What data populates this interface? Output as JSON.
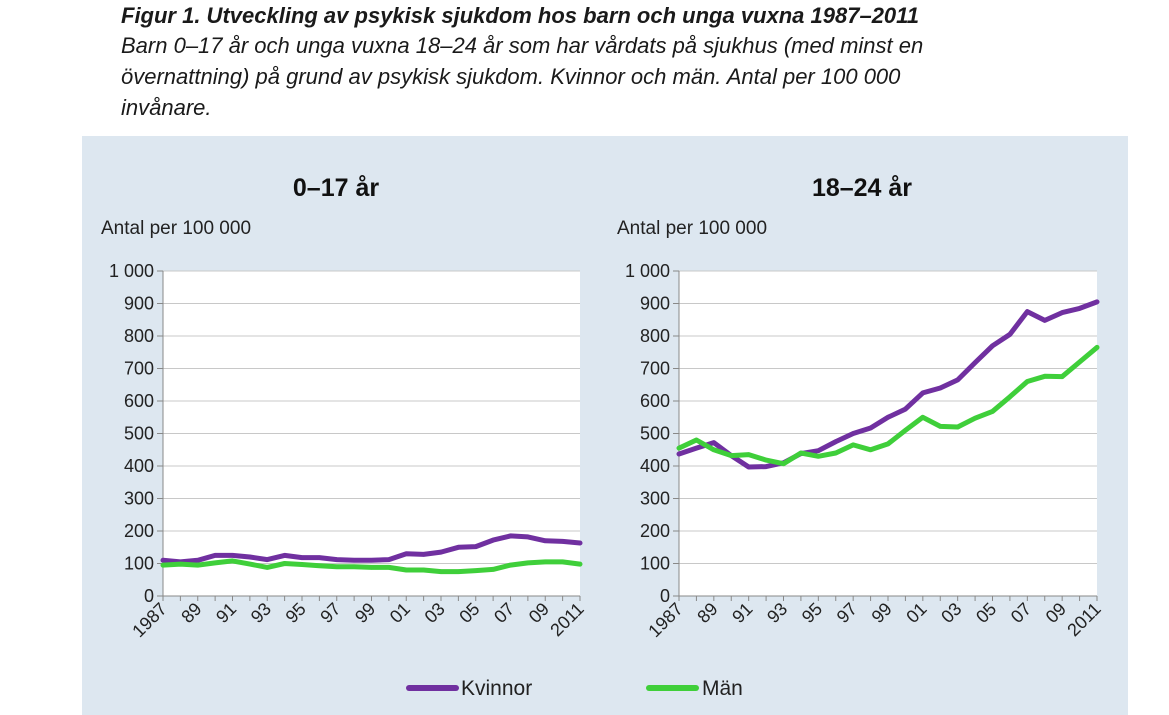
{
  "figure": {
    "title": "Figur 1. Utveckling av psykisk sjukdom hos barn och unga vuxna 1987–2011",
    "subtitle_lines": [
      "Barn 0–17 år och unga vuxna 18–24 år som har vårdats på sjukhus (med minst en",
      "övernattning) på grund av psykisk sjukdom. Kvinnor och män. Antal per 100 000",
      "invånare."
    ]
  },
  "colors": {
    "Kvinnor": "#7030a0",
    "Män": "#3fcf3a",
    "background": "#dde7f0",
    "plot": "#ffffff"
  },
  "legend": {
    "placement": "bottom",
    "items": [
      "Kvinnor",
      "Män"
    ]
  },
  "chart_data": [
    {
      "type": "line",
      "title": "0–17 år",
      "ylabel": "Antal per 100 000",
      "ylim": [
        0,
        1000
      ],
      "yticks": [
        "0",
        "100",
        "200",
        "300",
        "400",
        "500",
        "600",
        "700",
        "800",
        "900",
        "1 000"
      ],
      "x": [
        1987,
        1988,
        1989,
        1990,
        1991,
        1992,
        1993,
        1994,
        1995,
        1996,
        1997,
        1998,
        1999,
        2000,
        2001,
        2002,
        2003,
        2004,
        2005,
        2006,
        2007,
        2008,
        2009,
        2010,
        2011
      ],
      "xticklabels": [
        "1987",
        "89",
        "91",
        "93",
        "95",
        "97",
        "99",
        "01",
        "03",
        "05",
        "07",
        "09",
        "2011"
      ],
      "grid": true,
      "series": [
        {
          "name": "Kvinnor",
          "values": [
            110,
            105,
            110,
            125,
            125,
            120,
            112,
            125,
            118,
            118,
            112,
            110,
            110,
            112,
            130,
            128,
            135,
            150,
            152,
            172,
            185,
            182,
            170,
            168,
            163
          ]
        },
        {
          "name": "Män",
          "values": [
            95,
            98,
            95,
            102,
            108,
            98,
            88,
            100,
            97,
            93,
            90,
            90,
            88,
            88,
            80,
            80,
            75,
            75,
            78,
            82,
            95,
            102,
            105,
            105,
            98
          ]
        }
      ]
    },
    {
      "type": "line",
      "title": "18–24 år",
      "ylabel": "Antal per 100 000",
      "ylim": [
        0,
        1000
      ],
      "yticks": [
        "0",
        "100",
        "200",
        "300",
        "400",
        "500",
        "600",
        "700",
        "800",
        "900",
        "1 000"
      ],
      "x": [
        1987,
        1988,
        1989,
        1990,
        1991,
        1992,
        1993,
        1994,
        1995,
        1996,
        1997,
        1998,
        1999,
        2000,
        2001,
        2002,
        2003,
        2004,
        2005,
        2006,
        2007,
        2008,
        2009,
        2010,
        2011
      ],
      "xticklabels": [
        "1987",
        "89",
        "91",
        "93",
        "95",
        "97",
        "99",
        "01",
        "03",
        "05",
        "07",
        "09",
        "2011"
      ],
      "grid": true,
      "series": [
        {
          "name": "Kvinnor",
          "values": [
            437,
            455,
            472,
            432,
            397,
            398,
            410,
            438,
            447,
            475,
            500,
            517,
            550,
            575,
            625,
            640,
            665,
            718,
            770,
            805,
            875,
            848,
            872,
            885,
            905
          ]
        },
        {
          "name": "Män",
          "values": [
            455,
            480,
            450,
            432,
            435,
            418,
            407,
            440,
            430,
            440,
            465,
            450,
            468,
            510,
            550,
            522,
            520,
            547,
            568,
            613,
            660,
            676,
            675,
            720,
            765
          ]
        }
      ]
    }
  ]
}
